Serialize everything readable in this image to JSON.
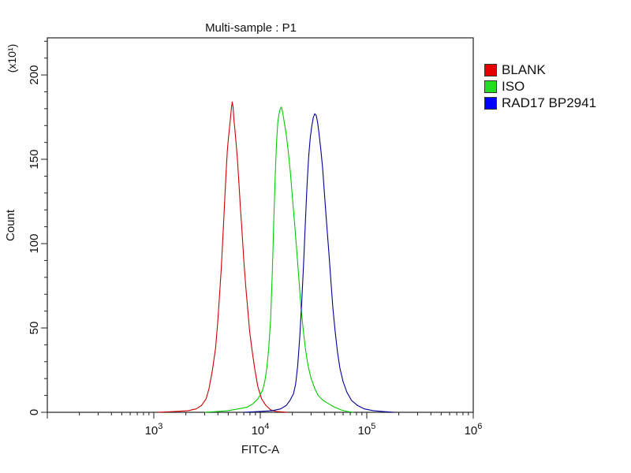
{
  "chart_data": {
    "type": "line",
    "title": "Multi-sample : P1",
    "xlabel": "FITC-A",
    "ylabel": "Count",
    "y_multiplier_label": "(x10¹)",
    "x_scale": "log",
    "xlim": [
      100,
      1000000
    ],
    "ylim": [
      0,
      222
    ],
    "x_ticks": [
      {
        "value": 1000,
        "base": "10",
        "exp": "3"
      },
      {
        "value": 10000,
        "base": "10",
        "exp": "4"
      },
      {
        "value": 100000,
        "base": "10",
        "exp": "5"
      },
      {
        "value": 1000000,
        "base": "10",
        "exp": "6"
      }
    ],
    "y_ticks": [
      {
        "value": 0,
        "label": "0"
      },
      {
        "value": 50,
        "label": "50"
      },
      {
        "value": 100,
        "label": "100"
      },
      {
        "value": 150,
        "label": "150"
      },
      {
        "value": 200,
        "label": "200"
      }
    ],
    "grid": false,
    "legend_position": "right",
    "series": [
      {
        "name": "BLANK",
        "color": "#cc0000",
        "swatch": "#e60000",
        "points": [
          [
            1100,
            0
          ],
          [
            1600,
            0.5
          ],
          [
            2100,
            1
          ],
          [
            2500,
            2
          ],
          [
            2800,
            4
          ],
          [
            3100,
            8
          ],
          [
            3300,
            14
          ],
          [
            3550,
            25
          ],
          [
            3800,
            38
          ],
          [
            4000,
            55
          ],
          [
            4150,
            70
          ],
          [
            4300,
            85
          ],
          [
            4450,
            103
          ],
          [
            4600,
            122
          ],
          [
            4750,
            140
          ],
          [
            4900,
            155
          ],
          [
            5050,
            164
          ],
          [
            5200,
            172
          ],
          [
            5350,
            180
          ],
          [
            5450,
            184
          ],
          [
            5550,
            181
          ],
          [
            5650,
            174
          ],
          [
            5800,
            166
          ],
          [
            5950,
            158
          ],
          [
            6100,
            150
          ],
          [
            6300,
            136
          ],
          [
            6500,
            122
          ],
          [
            6750,
            106
          ],
          [
            7000,
            90
          ],
          [
            7300,
            75
          ],
          [
            7600,
            62
          ],
          [
            7950,
            48
          ],
          [
            8400,
            36
          ],
          [
            8900,
            25
          ],
          [
            9500,
            15
          ],
          [
            10300,
            8
          ],
          [
            11300,
            4
          ],
          [
            12500,
            1.5
          ],
          [
            14000,
            0.5
          ],
          [
            18000,
            0
          ]
        ]
      },
      {
        "name": "ISO",
        "color": "#00cc00",
        "swatch": "#22dd22",
        "points": [
          [
            3000,
            0
          ],
          [
            4000,
            0.5
          ],
          [
            5000,
            1
          ],
          [
            6200,
            2
          ],
          [
            7500,
            3
          ],
          [
            8500,
            5
          ],
          [
            9500,
            8
          ],
          [
            10500,
            13
          ],
          [
            11000,
            18
          ],
          [
            11500,
            26
          ],
          [
            12000,
            38
          ],
          [
            12500,
            55
          ],
          [
            13000,
            85
          ],
          [
            13400,
            115
          ],
          [
            13800,
            140
          ],
          [
            14200,
            160
          ],
          [
            14600,
            172
          ],
          [
            15000,
            177
          ],
          [
            15400,
            180
          ],
          [
            15800,
            181
          ],
          [
            16200,
            178
          ],
          [
            16800,
            172
          ],
          [
            17500,
            165
          ],
          [
            18300,
            155
          ],
          [
            19200,
            142
          ],
          [
            20000,
            128
          ],
          [
            21000,
            112
          ],
          [
            22000,
            96
          ],
          [
            23000,
            80
          ],
          [
            24000,
            64
          ],
          [
            25200,
            50
          ],
          [
            26500,
            38
          ],
          [
            28000,
            28
          ],
          [
            30000,
            20
          ],
          [
            32500,
            14
          ],
          [
            35000,
            10
          ],
          [
            39000,
            7
          ],
          [
            44000,
            5
          ],
          [
            50000,
            3
          ],
          [
            57000,
            1.5
          ],
          [
            65000,
            0.5
          ],
          [
            75000,
            0
          ]
        ]
      },
      {
        "name": "RAD17 BP2941",
        "color": "#000099",
        "swatch": "#0000ff",
        "points": [
          [
            7000,
            0
          ],
          [
            10000,
            0.5
          ],
          [
            13000,
            1
          ],
          [
            15500,
            2
          ],
          [
            17500,
            4
          ],
          [
            19000,
            7
          ],
          [
            20500,
            11
          ],
          [
            21500,
            17
          ],
          [
            22500,
            28
          ],
          [
            23500,
            45
          ],
          [
            24500,
            65
          ],
          [
            25500,
            88
          ],
          [
            26500,
            112
          ],
          [
            27500,
            135
          ],
          [
            28500,
            152
          ],
          [
            29500,
            163
          ],
          [
            30500,
            170
          ],
          [
            31500,
            175
          ],
          [
            32500,
            177
          ],
          [
            33500,
            176
          ],
          [
            34500,
            172
          ],
          [
            35500,
            166
          ],
          [
            37000,
            156
          ],
          [
            38500,
            145
          ],
          [
            40000,
            130
          ],
          [
            42000,
            112
          ],
          [
            44000,
            95
          ],
          [
            46000,
            78
          ],
          [
            48000,
            62
          ],
          [
            50500,
            48
          ],
          [
            53000,
            36
          ],
          [
            56000,
            26
          ],
          [
            60000,
            18
          ],
          [
            65000,
            12
          ],
          [
            72000,
            7
          ],
          [
            82000,
            4
          ],
          [
            95000,
            2
          ],
          [
            115000,
            1
          ],
          [
            140000,
            0.5
          ],
          [
            180000,
            0
          ]
        ]
      }
    ]
  }
}
